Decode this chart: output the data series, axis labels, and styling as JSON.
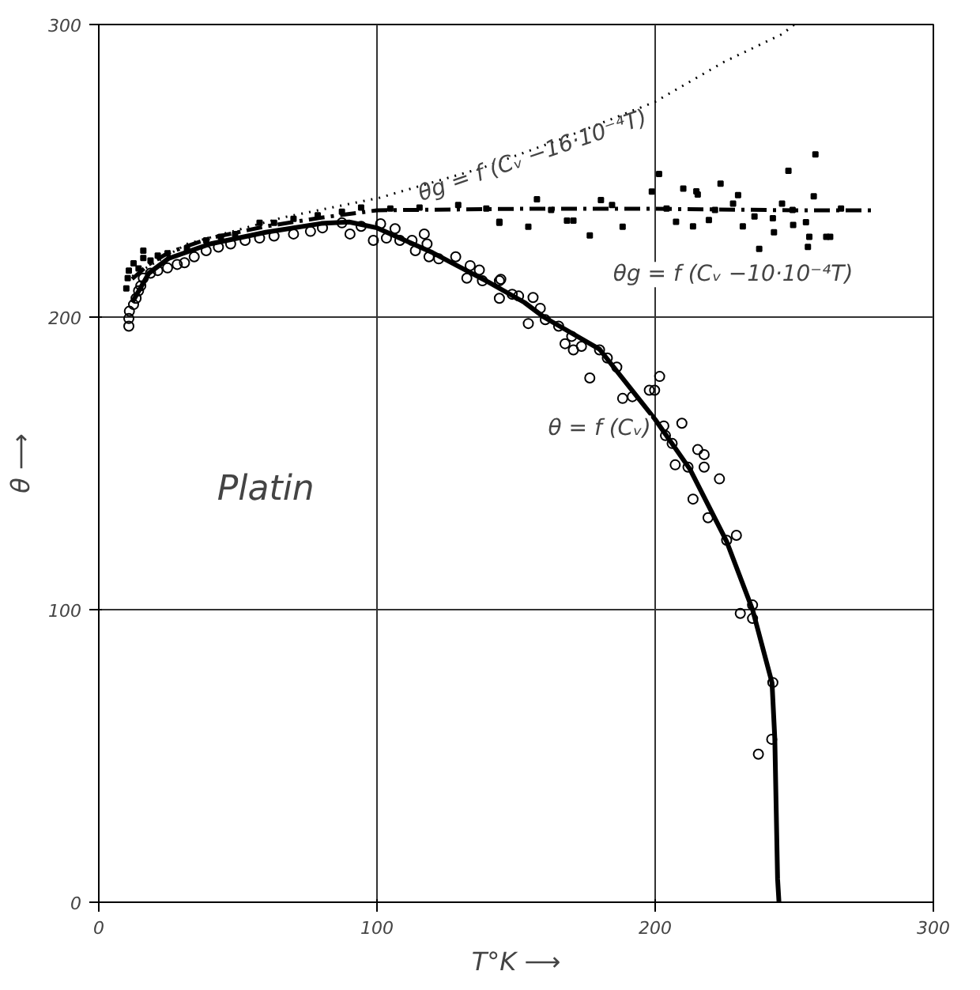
{
  "chart_data": {
    "type": "scatter",
    "xlabel": "T°K ⟶",
    "ylabel": "θ ⟶",
    "xlim": [
      0,
      300
    ],
    "ylim": [
      0,
      300
    ],
    "xticks": [
      0,
      100,
      200,
      300
    ],
    "yticks": [
      0,
      100,
      200,
      300
    ],
    "grid": true,
    "series": [
      {
        "marker": "circle",
        "color": "#000000",
        "x": [
          10.8,
          10.8,
          11,
          12.5,
          13.4,
          14.3,
          15.1,
          16,
          18.6,
          21.2,
          24.7,
          28.2,
          30.8,
          34.3,
          38.6,
          43,
          47.4,
          52.6,
          57.8,
          63,
          70,
          76.1,
          80.4,
          87.4,
          90.3,
          94.3,
          98.7,
          101.3,
          103.4,
          106.5,
          108.2,
          112.6,
          113.8,
          117,
          118,
          118.7,
          122.2,
          128.3,
          132.3,
          133.5,
          136.8,
          137.9,
          144,
          144,
          144.5,
          148.6,
          150.9,
          154.4,
          156.1,
          158.7,
          160.5,
          165.3,
          167.6,
          170,
          170.6,
          173.5,
          176.5,
          180,
          182.8,
          186.2,
          188.3,
          191.8,
          197.9,
          199.8,
          201.6,
          203.1,
          203.7,
          206.1,
          207.2,
          209.6,
          211.8,
          213.6,
          215.3,
          217.6,
          217.6,
          219,
          223.1,
          225.7,
          229.2,
          230.6,
          235,
          235,
          237.1,
          241.9,
          242.3
        ],
        "values": [
          196.9,
          199.5,
          202,
          204.3,
          206.4,
          209,
          210.7,
          213.3,
          215,
          215.9,
          216.8,
          218,
          218.6,
          220.6,
          222.7,
          223.9,
          225,
          226.2,
          227,
          227.7,
          228.4,
          229.3,
          230.5,
          232.2,
          228.4,
          231,
          226.2,
          231.9,
          227,
          230.2,
          226.2,
          226.2,
          222.7,
          228.4,
          225,
          220.6,
          219.9,
          220.6,
          213.3,
          217.6,
          216.1,
          212.4,
          212.4,
          206.4,
          212.9,
          207.8,
          207.2,
          197.8,
          206.7,
          203,
          199.1,
          196.9,
          190.9,
          193.4,
          188.8,
          190,
          179.2,
          188.8,
          186,
          182.9,
          172.2,
          172.8,
          175,
          175,
          179.7,
          162.8,
          159.5,
          156.8,
          149.5,
          163.7,
          148.7,
          137.8,
          154.7,
          153,
          148.7,
          131.4,
          144.7,
          123.7,
          125.4,
          98.7,
          101.6,
          97,
          50.6,
          55.7,
          75.1
        ]
      },
      {
        "marker": "square",
        "color": "#000000",
        "x": [
          9.9,
          10.4,
          10.8,
          12.5,
          14.3,
          16,
          16,
          18.6,
          21.2,
          24.7,
          31.7,
          38.6,
          43.9,
          49,
          57.8,
          63,
          70,
          78.7,
          87.4,
          94.3,
          104.8,
          115.3,
          129.2,
          139.3,
          144,
          144,
          154.4,
          157.5,
          162.6,
          168.3,
          170.6,
          176.5,
          180.5,
          184.5,
          188.3,
          198.8,
          201.4,
          204.1,
          207.5,
          210.1,
          213.6,
          214.8,
          215.3,
          219.3,
          221.5,
          223.5,
          228,
          229.8,
          231.5,
          235.7,
          237.4,
          242.3,
          242.7,
          245.6,
          247.9,
          249.4,
          249.6,
          254.2,
          254.9,
          255.4,
          257,
          257.6,
          261.5,
          262.9,
          266.8
        ],
        "values": [
          209.8,
          213.3,
          215.9,
          218.4,
          216.6,
          220.2,
          222.7,
          219.3,
          221,
          221.8,
          223.6,
          226.2,
          227.4,
          228.4,
          232.2,
          232.2,
          233.6,
          234.8,
          236,
          237.4,
          237.1,
          237.4,
          238.3,
          237.1,
          232.2,
          232.6,
          230.9,
          240.3,
          236.6,
          233,
          233,
          227.9,
          240,
          238.3,
          230.9,
          242.9,
          248.9,
          237.1,
          232.6,
          243.9,
          231,
          243,
          241.9,
          233.2,
          236.6,
          245.6,
          238.8,
          241.7,
          231,
          234.4,
          223.3,
          233.8,
          229,
          238.8,
          250,
          236.6,
          231.5,
          232.4,
          224,
          227.4,
          241.3,
          255.6,
          227.4,
          227.4,
          237.1
        ]
      },
      {
        "type": "line",
        "line_style": "solid",
        "color": "#000000",
        "x": [
          12,
          18,
          25,
          40,
          60,
          80,
          90,
          100,
          120,
          140,
          153,
          160,
          180,
          200,
          212.5,
          225.6,
          235,
          242,
          243,
          244,
          244.5
        ],
        "values": [
          205,
          215,
          220,
          225,
          229,
          232,
          232.5,
          230.5,
          222,
          212,
          205,
          200,
          189,
          165,
          148,
          123.5,
          100,
          75,
          56,
          8,
          0
        ]
      },
      {
        "type": "line",
        "line_style": "dashed",
        "color": "#000000",
        "x": [
          12,
          18,
          25,
          40,
          60,
          80,
          100,
          150,
          200,
          250,
          279
        ],
        "values": [
          213,
          218,
          222,
          227,
          231,
          234,
          236.5,
          237,
          237,
          236.5,
          236.5
        ]
      },
      {
        "type": "line",
        "line_style": "dotted",
        "color": "#000000",
        "x": [
          12,
          31.7,
          66,
          101,
          137.9,
          165.5,
          200,
          224.9,
          245.8,
          250
        ],
        "values": [
          214,
          225,
          234,
          240.8,
          251,
          260.6,
          273.6,
          287.3,
          296.8,
          300
        ]
      }
    ],
    "annotations": [
      "θg = f (Cᵥ −16·10⁻⁴T)",
      "θg = f (Cᵥ −10·10⁻⁴T)",
      "θ = f (Cᵥ)",
      "Platin"
    ]
  }
}
